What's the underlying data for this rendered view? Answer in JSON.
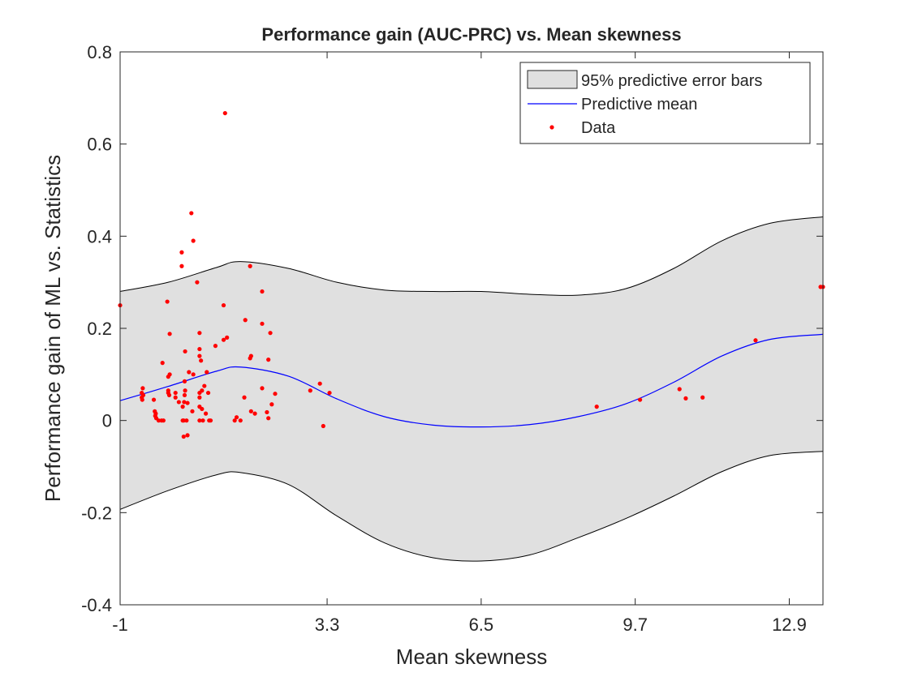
{
  "chart_data": {
    "type": "line",
    "title": "Performance gain (AUC-PRC) vs. Mean skewness",
    "xlabel": "Mean skewness",
    "ylabel": "Performance gain of ML vs. Statistics",
    "xlim": [
      -1,
      13.6
    ],
    "ylim": [
      -0.4,
      0.8
    ],
    "xticks": [
      -1,
      3.3,
      6.5,
      9.7,
      12.9
    ],
    "xtick_labels": [
      "-1",
      "3.3",
      "6.5",
      "9.7",
      "12.9"
    ],
    "yticks": [
      -0.4,
      -0.2,
      0,
      0.2,
      0.4,
      0.6,
      0.8
    ],
    "ytick_labels": [
      "-0.4",
      "-0.2",
      "0",
      "0.2",
      "0.4",
      "0.6",
      "0.8"
    ],
    "grid": false,
    "legend_position": "top-right",
    "legend": [
      {
        "label": "95% predictive error bars",
        "kind": "patch",
        "color": "#e0e0e0"
      },
      {
        "label": "Predictive mean",
        "kind": "line",
        "color": "#0000ff"
      },
      {
        "label": "Data",
        "kind": "marker",
        "color": "#ff0000"
      }
    ],
    "series": [
      {
        "name": "95% predictive error bars",
        "kind": "band",
        "x": [
          -1,
          0,
          1,
          1.5,
          2.5,
          3.5,
          4.5,
          5.5,
          6.5,
          7.5,
          8.5,
          9.5,
          10.5,
          11.5,
          12.5,
          13.6
        ],
        "upper": [
          0.28,
          0.3,
          0.332,
          0.345,
          0.33,
          0.3,
          0.283,
          0.28,
          0.28,
          0.274,
          0.272,
          0.286,
          0.33,
          0.39,
          0.428,
          0.442
        ],
        "lower": [
          -0.193,
          -0.152,
          -0.118,
          -0.113,
          -0.139,
          -0.207,
          -0.266,
          -0.298,
          -0.305,
          -0.292,
          -0.255,
          -0.213,
          -0.164,
          -0.111,
          -0.076,
          -0.067
        ]
      },
      {
        "name": "Predictive mean",
        "kind": "line",
        "color": "#0000ff",
        "x": [
          -1,
          0,
          1,
          1.5,
          2.5,
          3.5,
          4.5,
          5.5,
          6.5,
          7.5,
          8.5,
          9.5,
          10.5,
          11.5,
          12.5,
          13.6
        ],
        "y": [
          0.043,
          0.074,
          0.107,
          0.116,
          0.096,
          0.047,
          0.008,
          -0.01,
          -0.014,
          -0.009,
          0.008,
          0.036,
          0.083,
          0.14,
          0.176,
          0.187
        ]
      },
      {
        "name": "Data",
        "kind": "scatter",
        "color": "#ff0000",
        "points": [
          [
            -1.0,
            0.25
          ],
          [
            -0.55,
            0.05
          ],
          [
            -0.55,
            0.06
          ],
          [
            -0.54,
            0.045
          ],
          [
            -0.53,
            0.07
          ],
          [
            -0.52,
            0.055
          ],
          [
            -0.3,
            0.045
          ],
          [
            -0.28,
            0.02
          ],
          [
            -0.27,
            0.01
          ],
          [
            -0.25,
            0.005
          ],
          [
            -0.26,
            0.015
          ],
          [
            -0.2,
            0.0
          ],
          [
            -0.14,
            0.0
          ],
          [
            -0.1,
            0.0
          ],
          [
            -0.12,
            0.125
          ],
          [
            -0.02,
            0.258
          ],
          [
            -0.0,
            0.095
          ],
          [
            0.0,
            0.06
          ],
          [
            0.0,
            0.065
          ],
          [
            0.02,
            0.055
          ],
          [
            0.03,
            0.1
          ],
          [
            0.03,
            0.188
          ],
          [
            0.15,
            0.06
          ],
          [
            0.15,
            0.05
          ],
          [
            0.22,
            0.04
          ],
          [
            0.28,
            0.365
          ],
          [
            0.28,
            0.335
          ],
          [
            0.3,
            0.03
          ],
          [
            0.3,
            0.0
          ],
          [
            0.32,
            0.0
          ],
          [
            0.32,
            -0.035
          ],
          [
            0.33,
            0.04
          ],
          [
            0.34,
            0.085
          ],
          [
            0.35,
            0.065
          ],
          [
            0.34,
            0.055
          ],
          [
            0.35,
            0.15
          ],
          [
            0.38,
            0.0
          ],
          [
            0.4,
            -0.032
          ],
          [
            0.4,
            0.038
          ],
          [
            0.43,
            0.105
          ],
          [
            0.48,
            0.45
          ],
          [
            0.52,
            0.39
          ],
          [
            0.52,
            0.1
          ],
          [
            0.5,
            0.02
          ],
          [
            0.6,
            0.3
          ],
          [
            0.65,
            0.19
          ],
          [
            0.65,
            0.155
          ],
          [
            0.65,
            0.14
          ],
          [
            0.65,
            0.05
          ],
          [
            0.65,
            0.06
          ],
          [
            0.65,
            0.03
          ],
          [
            0.65,
            0.0
          ],
          [
            0.68,
            0.13
          ],
          [
            0.7,
            0.065
          ],
          [
            0.7,
            0.025
          ],
          [
            0.72,
            0.0
          ],
          [
            0.75,
            0.075
          ],
          [
            0.78,
            0.015
          ],
          [
            0.8,
            0.105
          ],
          [
            0.83,
            0.06
          ],
          [
            0.85,
            0.0
          ],
          [
            0.88,
            0.0
          ],
          [
            0.98,
            0.162
          ],
          [
            1.15,
            0.25
          ],
          [
            1.15,
            0.175
          ],
          [
            1.18,
            0.667
          ],
          [
            1.22,
            0.18
          ],
          [
            1.38,
            0.0
          ],
          [
            1.42,
            0.007
          ],
          [
            1.5,
            0.0
          ],
          [
            1.58,
            0.05
          ],
          [
            1.6,
            0.218
          ],
          [
            1.7,
            0.335
          ],
          [
            1.7,
            0.135
          ],
          [
            1.72,
            0.14
          ],
          [
            1.72,
            0.02
          ],
          [
            1.8,
            0.015
          ],
          [
            1.95,
            0.28
          ],
          [
            1.95,
            0.21
          ],
          [
            1.95,
            0.07
          ],
          [
            2.05,
            0.018
          ],
          [
            2.08,
            0.005
          ],
          [
            2.08,
            0.132
          ],
          [
            2.12,
            0.19
          ],
          [
            2.15,
            0.035
          ],
          [
            2.22,
            0.058
          ],
          [
            2.95,
            0.065
          ],
          [
            3.15,
            0.08
          ],
          [
            3.22,
            -0.012
          ],
          [
            3.35,
            0.06
          ],
          [
            8.9,
            0.03
          ],
          [
            9.8,
            0.045
          ],
          [
            10.62,
            0.068
          ],
          [
            10.75,
            0.048
          ],
          [
            11.1,
            0.05
          ],
          [
            12.2,
            0.174
          ],
          [
            13.55,
            0.29
          ],
          [
            13.6,
            0.29
          ]
        ]
      }
    ]
  }
}
